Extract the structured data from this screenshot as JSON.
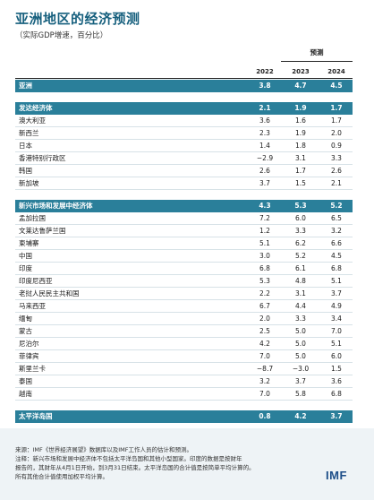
{
  "title": "亚洲地区的经济预测",
  "subtitle": "（实际GDP增速，百分比）",
  "projections_label": "预测",
  "chart_data": {
    "type": "table",
    "columns": [
      "2022",
      "2023",
      "2024"
    ],
    "groups": [
      {
        "name": "亚洲",
        "values": [
          "3.8",
          "4.7",
          "4.5"
        ],
        "rows": []
      },
      {
        "name": "发达经济体",
        "values": [
          "2.1",
          "1.9",
          "1.7"
        ],
        "rows": [
          {
            "name": "澳大利亚",
            "values": [
              "3.6",
              "1.6",
              "1.7"
            ]
          },
          {
            "name": "新西兰",
            "values": [
              "2.3",
              "1.9",
              "2.0"
            ]
          },
          {
            "name": "日本",
            "values": [
              "1.4",
              "1.8",
              "0.9"
            ]
          },
          {
            "name": "香港特别行政区",
            "values": [
              "−2.9",
              "3.1",
              "3.3"
            ]
          },
          {
            "name": "韩国",
            "values": [
              "2.6",
              "1.7",
              "2.6"
            ]
          },
          {
            "name": "新加坡",
            "values": [
              "3.7",
              "1.5",
              "2.1"
            ]
          }
        ]
      },
      {
        "name": "新兴市场和发展中经济体",
        "values": [
          "4.3",
          "5.3",
          "5.2"
        ],
        "rows": [
          {
            "name": "孟加拉国",
            "values": [
              "7.2",
              "6.0",
              "6.5"
            ]
          },
          {
            "name": "文莱达鲁萨兰国",
            "values": [
              "1.2",
              "3.3",
              "3.2"
            ]
          },
          {
            "name": "柬埔寨",
            "values": [
              "5.1",
              "6.2",
              "6.6"
            ]
          },
          {
            "name": "中国",
            "values": [
              "3.0",
              "5.2",
              "4.5"
            ]
          },
          {
            "name": "印度",
            "values": [
              "6.8",
              "6.1",
              "6.8"
            ]
          },
          {
            "name": "印度尼西亚",
            "values": [
              "5.3",
              "4.8",
              "5.1"
            ]
          },
          {
            "name": "老挝人民民主共和国",
            "values": [
              "2.2",
              "3.1",
              "3.7"
            ]
          },
          {
            "name": "马来西亚",
            "values": [
              "6.7",
              "4.4",
              "4.9"
            ]
          },
          {
            "name": "缅甸",
            "values": [
              "2.0",
              "3.3",
              "3.4"
            ]
          },
          {
            "name": "蒙古",
            "values": [
              "2.5",
              "5.0",
              "7.0"
            ]
          },
          {
            "name": "尼泊尔",
            "values": [
              "4.2",
              "5.0",
              "5.1"
            ]
          },
          {
            "name": "菲律宾",
            "values": [
              "7.0",
              "5.0",
              "6.0"
            ]
          },
          {
            "name": "斯里兰卡",
            "values": [
              "−8.7",
              "−3.0",
              "1.5"
            ]
          },
          {
            "name": "泰国",
            "values": [
              "3.2",
              "3.7",
              "3.6"
            ]
          },
          {
            "name": "越南",
            "values": [
              "7.0",
              "5.8",
              "6.8"
            ]
          }
        ]
      },
      {
        "name": "太平洋岛国",
        "values": [
          "0.8",
          "4.2",
          "3.7"
        ],
        "rows": []
      }
    ]
  },
  "notes": [
    "来源：IMF《世界经济展望》数据库以及IMF工作人员的估计和预测。",
    "注释：新兴市场和发展中经济体不包括太平洋岛国和其他小型国家。印度的数据是按财年",
    "报告的，其财年从4月1日开始，到3月31日结束。太平洋岛国的合计值是按简单平均计算的。",
    "所有其他合计值使用加权平均计算。"
  ],
  "logo_text": "IMF"
}
